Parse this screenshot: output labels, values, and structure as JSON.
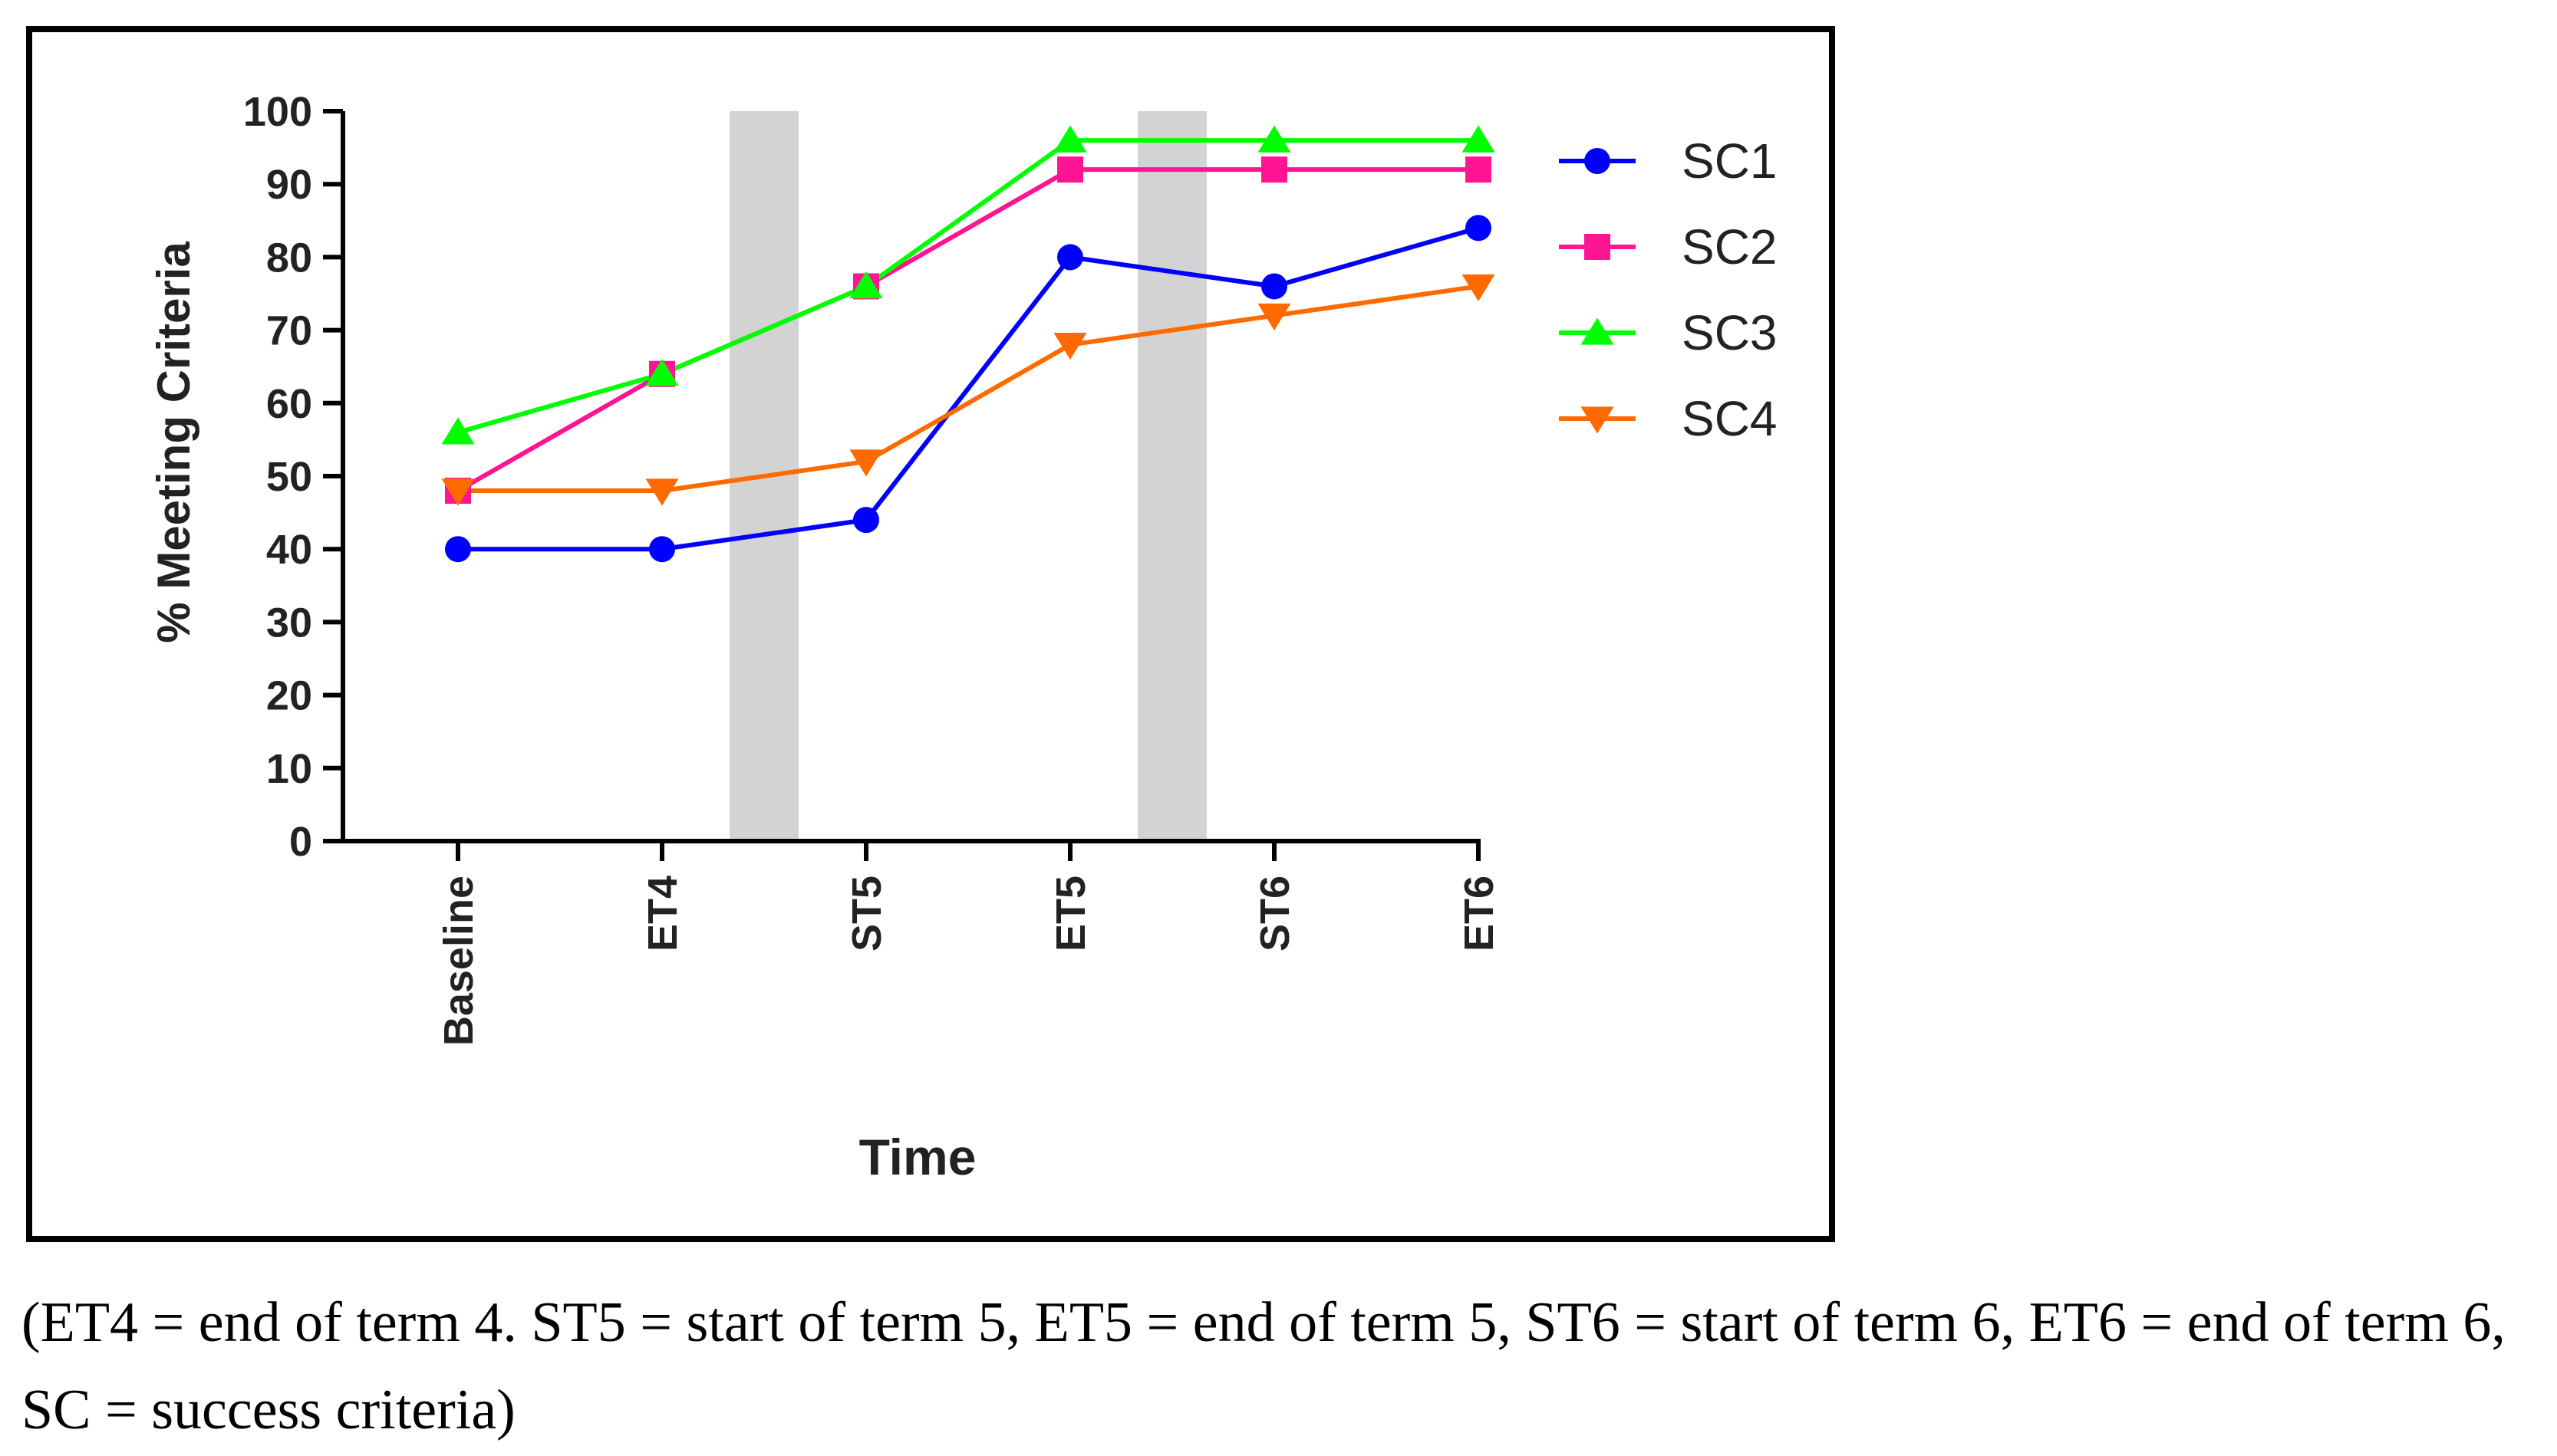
{
  "chart_data": {
    "type": "line",
    "title": "",
    "xlabel": "Time",
    "ylabel": "% Meeting Criteria",
    "categories": [
      "Baseline",
      "ET4",
      "ST5",
      "ET5",
      "ST6",
      "ET6"
    ],
    "ylim": [
      0,
      100
    ],
    "yticks": [
      0,
      10,
      20,
      30,
      40,
      50,
      60,
      70,
      80,
      90,
      100
    ],
    "grid": false,
    "legend_position": "right",
    "shaded_intervals": [
      {
        "between": [
          "ET4",
          "ST5"
        ]
      },
      {
        "between": [
          "ET5",
          "ST6"
        ]
      }
    ],
    "shade_color": "#d3d3d3",
    "series": [
      {
        "name": "SC1",
        "values": [
          40,
          40,
          44,
          80,
          76,
          84
        ],
        "color": "#0000ff",
        "marker": "circle"
      },
      {
        "name": "SC2",
        "values": [
          48,
          64,
          76,
          92,
          92,
          92
        ],
        "color": "#ff1493",
        "marker": "square"
      },
      {
        "name": "SC3",
        "values": [
          56,
          64,
          76,
          96,
          96,
          96
        ],
        "color": "#00ff00",
        "marker": "triangle-up"
      },
      {
        "name": "SC4",
        "values": [
          48,
          48,
          52,
          68,
          72,
          76
        ],
        "color": "#ff6a00",
        "marker": "triangle-down"
      }
    ]
  },
  "caption": "(ET4 = end of term 4. ST5 = start of term 5, ET5 = end of term 5, ST6 = start of term 6, ET6 = end of term 6, SC = success criteria)"
}
